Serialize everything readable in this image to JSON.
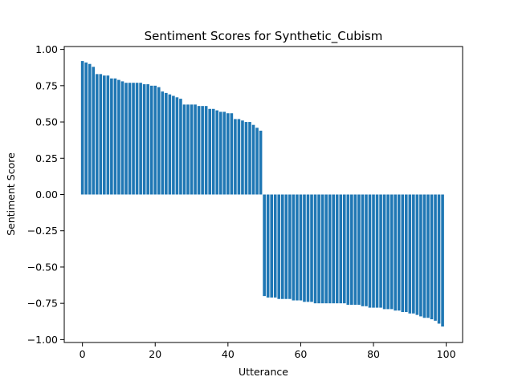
{
  "chart_data": {
    "type": "bar",
    "title": "Sentiment Scores for Synthetic_Cubism",
    "xlabel": "Utterance",
    "ylabel": "Sentiment Score",
    "xlim": [
      -5,
      104.5
    ],
    "ylim": [
      -1.02,
      1.02
    ],
    "xticks": [
      0,
      20,
      40,
      60,
      80,
      100
    ],
    "xtick_labels": [
      "0",
      "20",
      "40",
      "60",
      "80",
      "100"
    ],
    "yticks": [
      -1.0,
      -0.75,
      -0.5,
      -0.25,
      0.0,
      0.25,
      0.5,
      0.75,
      1.0
    ],
    "ytick_labels": [
      "−1.00",
      "−0.75",
      "−0.50",
      "−0.25",
      "0.00",
      "0.25",
      "0.50",
      "0.75",
      "1.00"
    ],
    "grid": false,
    "bar_color": "#1f77b4",
    "x": [
      0,
      1,
      2,
      3,
      4,
      5,
      6,
      7,
      8,
      9,
      10,
      11,
      12,
      13,
      14,
      15,
      16,
      17,
      18,
      19,
      20,
      21,
      22,
      23,
      24,
      25,
      26,
      27,
      28,
      29,
      30,
      31,
      32,
      33,
      34,
      35,
      36,
      37,
      38,
      39,
      40,
      41,
      42,
      43,
      44,
      45,
      46,
      47,
      48,
      49,
      50,
      51,
      52,
      53,
      54,
      55,
      56,
      57,
      58,
      59,
      60,
      61,
      62,
      63,
      64,
      65,
      66,
      67,
      68,
      69,
      70,
      71,
      72,
      73,
      74,
      75,
      76,
      77,
      78,
      79,
      80,
      81,
      82,
      83,
      84,
      85,
      86,
      87,
      88,
      89,
      90,
      91,
      92,
      93,
      94,
      95,
      96,
      97,
      98,
      99
    ],
    "values": [
      0.92,
      0.91,
      0.9,
      0.88,
      0.83,
      0.83,
      0.82,
      0.82,
      0.8,
      0.8,
      0.79,
      0.78,
      0.77,
      0.77,
      0.77,
      0.77,
      0.77,
      0.76,
      0.76,
      0.75,
      0.75,
      0.74,
      0.71,
      0.7,
      0.69,
      0.68,
      0.67,
      0.66,
      0.62,
      0.62,
      0.62,
      0.62,
      0.61,
      0.61,
      0.61,
      0.59,
      0.59,
      0.58,
      0.57,
      0.57,
      0.56,
      0.56,
      0.52,
      0.52,
      0.51,
      0.5,
      0.5,
      0.48,
      0.46,
      0.44,
      -0.7,
      -0.71,
      -0.71,
      -0.71,
      -0.72,
      -0.72,
      -0.72,
      -0.72,
      -0.73,
      -0.73,
      -0.73,
      -0.74,
      -0.74,
      -0.74,
      -0.75,
      -0.75,
      -0.75,
      -0.75,
      -0.75,
      -0.75,
      -0.75,
      -0.75,
      -0.75,
      -0.76,
      -0.76,
      -0.76,
      -0.76,
      -0.77,
      -0.77,
      -0.78,
      -0.78,
      -0.78,
      -0.78,
      -0.79,
      -0.79,
      -0.79,
      -0.8,
      -0.8,
      -0.81,
      -0.81,
      -0.82,
      -0.82,
      -0.83,
      -0.84,
      -0.85,
      -0.85,
      -0.86,
      -0.87,
      -0.89,
      -0.91
    ]
  }
}
